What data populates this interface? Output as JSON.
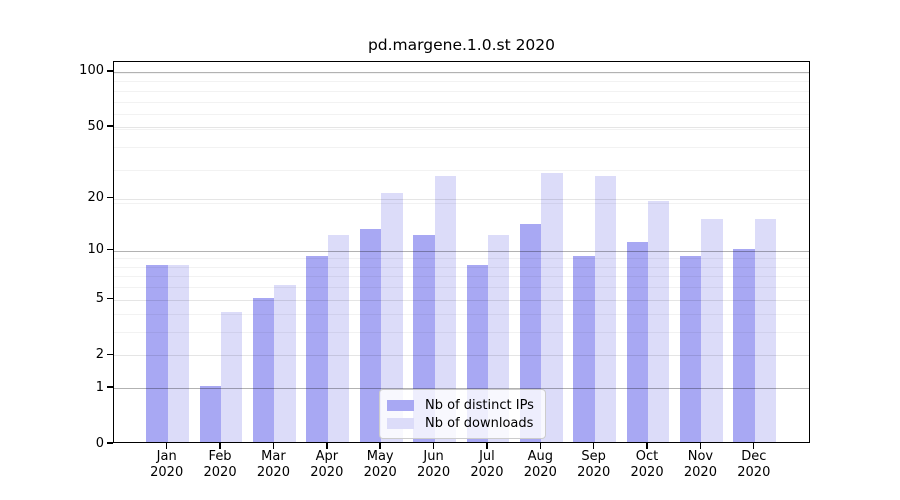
{
  "chart_data": {
    "type": "bar",
    "title": "pd.margene.1.0.st 2020",
    "categories": [
      "Jan",
      "Feb",
      "Mar",
      "Apr",
      "May",
      "Jun",
      "Jul",
      "Aug",
      "Sep",
      "Oct",
      "Nov",
      "Dec"
    ],
    "year_label": "2020",
    "series": [
      {
        "name": "Nb of distinct IPs",
        "color": "#a8a8f3",
        "values": [
          8,
          1,
          5,
          9,
          13,
          12,
          8,
          14,
          9,
          11,
          9,
          10
        ]
      },
      {
        "name": "Nb of downloads",
        "color": "#dcdcf9",
        "values": [
          8,
          4,
          6,
          12,
          21,
          26,
          12,
          27,
          26,
          19,
          15,
          15
        ]
      }
    ],
    "ylabel": "",
    "xlabel": "",
    "yticks": [
      0,
      1,
      2,
      5,
      10,
      20,
      50,
      100
    ],
    "ylim": [
      0,
      113
    ],
    "yscale": "log10(1+x)",
    "grid": "both",
    "legend_position": "lower center",
    "colors": {
      "grid_strong": "rgba(0,0,0,0.30)",
      "grid_major": "rgba(0,0,0,0.10)",
      "grid_minor": "rgba(0,0,0,0.05)"
    }
  }
}
